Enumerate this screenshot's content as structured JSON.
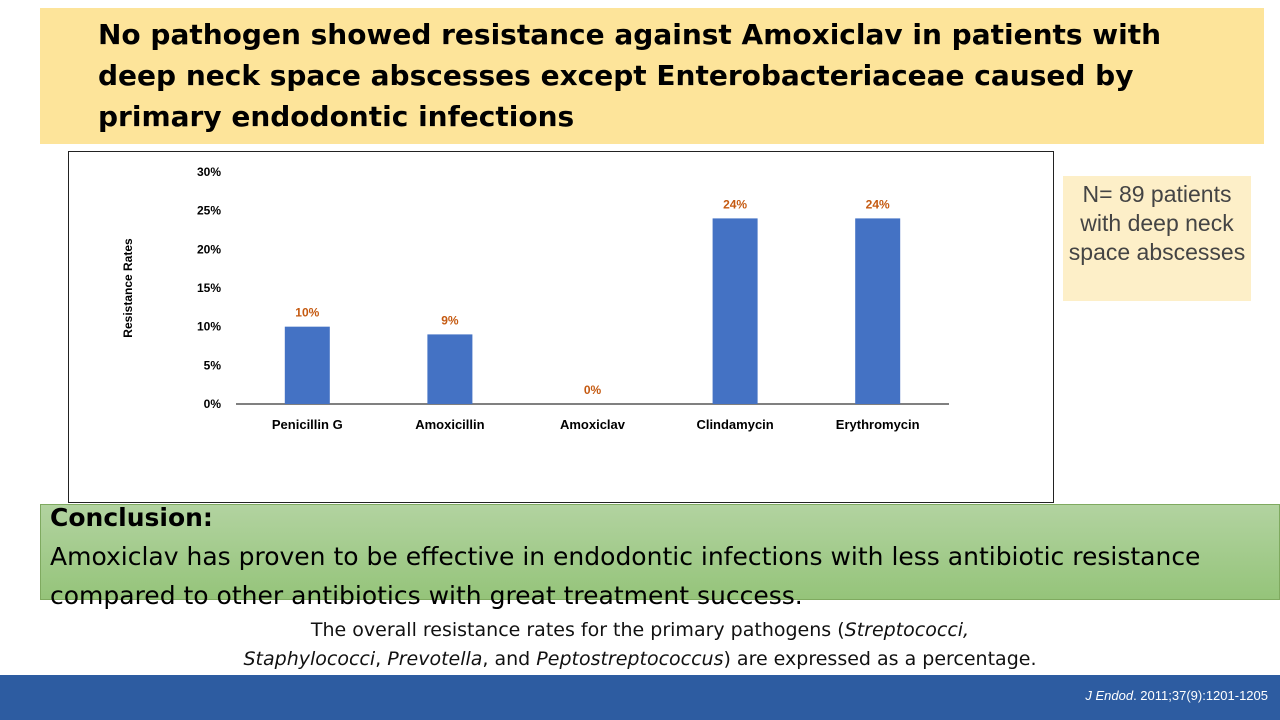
{
  "slide": {
    "title": "No pathogen showed resistance against Amoxiclav in patients with deep neck space abscesses except Enterobacteriaceae caused by primary endodontic infections",
    "n_box": "N= 89 patients with deep neck space abscesses",
    "conclusion_heading": "Conclusion:",
    "conclusion_text": "Amoxiclav has proven to be effective in endodontic infections with less antibiotic resistance compared to other antibiotics with great treatment success.",
    "caption_parts": [
      {
        "t": "The overall resistance rates for the primary pathogens (",
        "i": false
      },
      {
        "t": "Streptococci,",
        "i": true
      },
      {
        "t": " ",
        "i": false
      },
      {
        "t": "Staphylococci",
        "i": true
      },
      {
        "t": ", ",
        "i": false
      },
      {
        "t": "Prevotella",
        "i": true
      },
      {
        "t": ", and ",
        "i": false
      },
      {
        "t": "Peptostreptococcus",
        "i": true
      },
      {
        "t": ") are expressed as a percentage.",
        "i": false
      }
    ],
    "citation_journal": "J Endod",
    "citation_rest": ". 2011;37(9):1201-1205"
  },
  "colors": {
    "title_bg": "#fde49a",
    "bar": "#4472c4",
    "data_label": "#c55a11",
    "conclusion_bg": "#a9d18e",
    "footer": "#2d5ca1"
  },
  "chart_data": {
    "type": "bar",
    "ylabel": "Resistance Rates",
    "xlabel": "",
    "categories": [
      "Penicillin G",
      "Amoxicillin",
      "Amoxiclav",
      "Clindamycin",
      "Erythromycin"
    ],
    "values": [
      10,
      9,
      0,
      24,
      24
    ],
    "data_labels": [
      "10%",
      "9%",
      "0%",
      "24%",
      "24%"
    ],
    "ylim": [
      0,
      30
    ],
    "yticks": [
      0,
      5,
      10,
      15,
      20,
      25,
      30
    ],
    "ytick_labels": [
      "0%",
      "5%",
      "10%",
      "15%",
      "20%",
      "25%",
      "30%"
    ],
    "grid": false,
    "legend": "none"
  }
}
